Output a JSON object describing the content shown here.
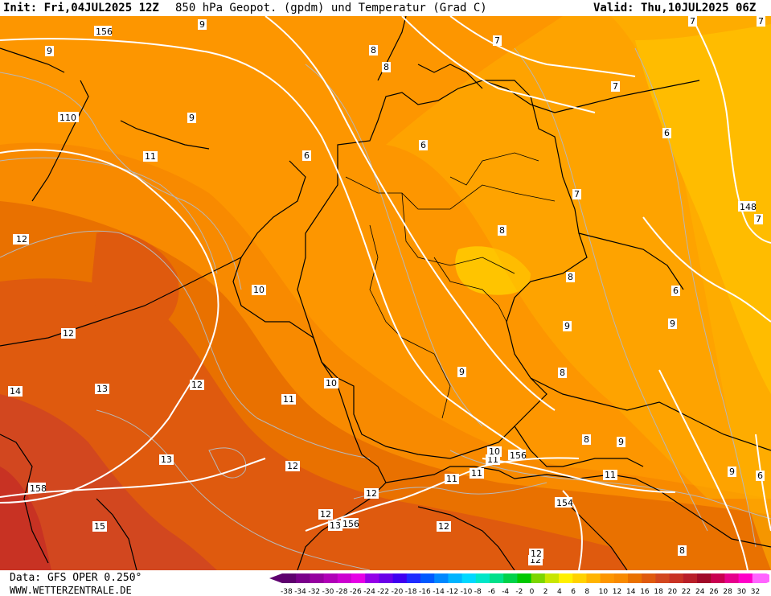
{
  "header": {
    "init": "Init: Fri,04JUL2025 12Z",
    "title": "850 hPa Geopot. (gpdm) und Temperatur (Grad C)",
    "valid": "Valid: Thu,10JUL2025 06Z"
  },
  "footer": {
    "data_source": "Data: GFS OPER 0.250°",
    "website": "WWW.WETTERZENTRALE.DE"
  },
  "colors": {
    "t6": "#ffb400",
    "t8": "#fd9600",
    "t10": "#f88a00",
    "t12": "#e97100",
    "t14": "#df5a0e",
    "t16": "#d2471f",
    "t18": "#c83223",
    "geopotential_contour": "#ffffff",
    "temperature_contour": "#b8b8b8",
    "border": "#000000"
  },
  "temperature_scale": {
    "ticks": [
      "-38",
      "-34",
      "-32",
      "-30",
      "-28",
      "-26",
      "-24",
      "-22",
      "-20",
      "-18",
      "-16",
      "-14",
      "-12",
      "-10",
      "-8",
      "-6",
      "-4",
      "-2",
      "0",
      "2",
      "4",
      "6",
      "8",
      "10",
      "12",
      "14",
      "16",
      "18",
      "20",
      "22",
      "24",
      "26",
      "28",
      "30",
      "32"
    ],
    "colors": [
      "#5e006e",
      "#7a008a",
      "#95009f",
      "#b000b7",
      "#cc00d0",
      "#e600e6",
      "#9400e8",
      "#6a00e8",
      "#4000f0",
      "#1f2cff",
      "#0059ff",
      "#0088ff",
      "#00b4ff",
      "#00d8ff",
      "#00e6c8",
      "#00e08a",
      "#00d24a",
      "#00c800",
      "#7cd600",
      "#c8e600",
      "#fff000",
      "#ffd200",
      "#ffb400",
      "#fd9600",
      "#f88a00",
      "#e97100",
      "#df5a0e",
      "#d2471f",
      "#c83223",
      "#b81e28",
      "#a00a28",
      "#c80050",
      "#e6008c",
      "#ff00c8",
      "#ff64ff"
    ]
  },
  "geopotential_labels": [
    "156",
    "148",
    "110",
    "158",
    "156",
    "156",
    "154",
    "156",
    "158"
  ],
  "temperature_labels": [
    "9",
    "9",
    "9",
    "8",
    "6",
    "7",
    "8",
    "6",
    "7",
    "6",
    "7",
    "7",
    "8",
    "8",
    "6",
    "9",
    "9",
    "9",
    "9",
    "6",
    "7",
    "7",
    "9",
    "8",
    "8",
    "10",
    "11",
    "11",
    "11",
    "12",
    "12",
    "12",
    "12",
    "12",
    "13",
    "13",
    "12",
    "15",
    "11",
    "10",
    "10",
    "14",
    "11",
    "12",
    "12",
    "12",
    "11",
    "13",
    "12",
    "8"
  ]
}
